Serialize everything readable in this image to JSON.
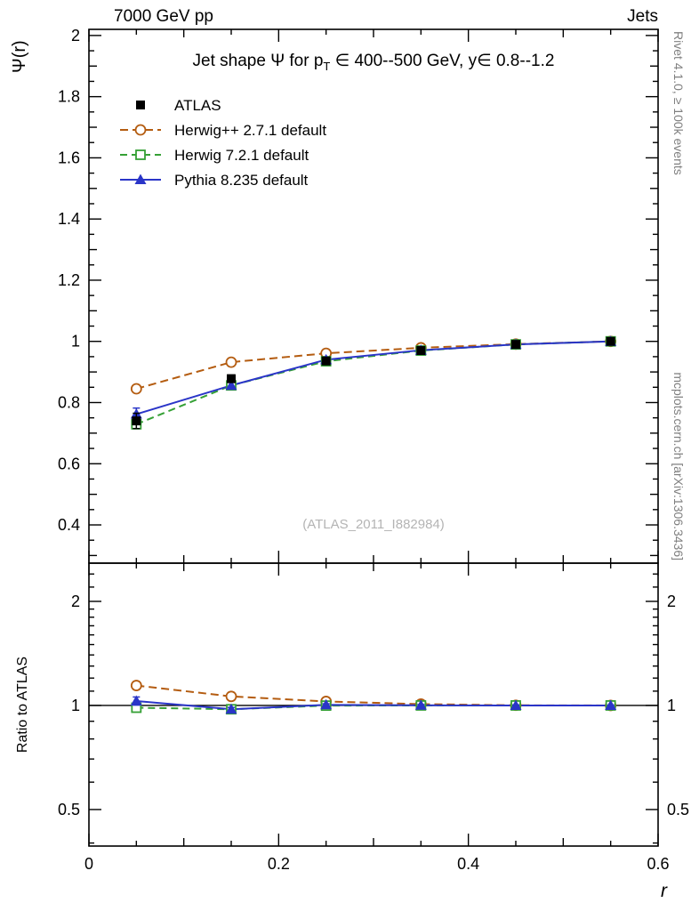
{
  "header": {
    "left": "7000 GeV pp",
    "right": "Jets"
  },
  "side_notes": {
    "top_right": "Rivet 4.1.0, ≥ 100k events",
    "bottom_right": "mcplots.cern.ch [arXiv:1306.3436]"
  },
  "watermark": "(ATLAS_2011_I882984)",
  "chart_data": {
    "type": "line",
    "panels": [
      "main",
      "ratio"
    ],
    "title_parts": {
      "pre": "Jet shape Ψ for p",
      "sub": "T",
      "post": " ∈ 400--500 GeV, y∈ 0.8--1.2"
    },
    "axes": {
      "x": {
        "label": "r",
        "lim": [
          0,
          0.6
        ],
        "majors": [
          0,
          0.2,
          0.4,
          0.6
        ],
        "labels": [
          "0",
          "0.2",
          "0.4",
          "0.6"
        ],
        "minor_step": 0.05
      },
      "main_y": {
        "label": "Ψ(r)",
        "lim": [
          0.275,
          2.02
        ],
        "majors": [
          0.4,
          0.6,
          0.8,
          1,
          1.2,
          1.4,
          1.6,
          1.8,
          2
        ],
        "labels": [
          "0.4",
          "0.6",
          "0.8",
          "1",
          "1.2",
          "1.4",
          "1.6",
          "1.8",
          "2"
        ],
        "minor_step": 0.05
      },
      "ratio_y": {
        "label": "Ratio to ATLAS",
        "scale": "log",
        "lim": [
          0.392,
          2.58
        ],
        "majors": [
          0.5,
          1,
          2
        ],
        "labels": [
          "0.5",
          "1",
          "2"
        ],
        "minors": [
          0.4,
          0.6,
          0.7,
          0.8,
          0.9,
          1.1,
          1.2,
          1.3,
          1.4,
          1.5,
          1.6,
          1.7,
          1.8,
          1.9,
          2.2,
          2.4
        ],
        "reference": 1
      }
    },
    "x": [
      0.05,
      0.15,
      0.25,
      0.35,
      0.45,
      0.55
    ],
    "series": [
      {
        "id": "atlas",
        "name": "ATLAS",
        "color": "#000000",
        "marker": "filled-square",
        "line": "none",
        "values": [
          0.74,
          0.878,
          0.936,
          0.97,
          0.99,
          1.0
        ],
        "errors": [
          0.025,
          0.012,
          0.008,
          0.005,
          0.004,
          0.002
        ],
        "ratio_is_reference": true
      },
      {
        "id": "herwigpp",
        "name": "Herwig++ 2.7.1 default",
        "color": "#b45c10",
        "marker": "open-circle",
        "line": "dashed",
        "dash": "9 5",
        "values": [
          0.845,
          0.932,
          0.961,
          0.979,
          0.991,
          1.0
        ],
        "errors": [
          0.008,
          0.005,
          0.004,
          0.003,
          0.002,
          0.002
        ],
        "ratio": [
          1.142,
          1.062,
          1.027,
          1.009,
          1.001,
          1.0
        ],
        "ratio_errors": [
          0.012,
          0.007,
          0.005,
          0.004,
          0.003,
          0.002
        ]
      },
      {
        "id": "herwig7",
        "name": "Herwig 7.2.1 default",
        "color": "#35a035",
        "marker": "open-square",
        "line": "dashed",
        "dash": "8 5",
        "values": [
          0.729,
          0.856,
          0.935,
          0.97,
          0.99,
          1.0
        ],
        "errors": [
          0.01,
          0.006,
          0.004,
          0.003,
          0.002,
          0.002
        ],
        "ratio": [
          0.985,
          0.975,
          0.999,
          1.0,
          1.0,
          1.0
        ],
        "ratio_errors": [
          0.015,
          0.008,
          0.005,
          0.004,
          0.003,
          0.002
        ]
      },
      {
        "id": "pythia",
        "name": "Pythia 8.235 default",
        "color": "#2a35c8",
        "marker": "filled-triangle",
        "line": "solid",
        "values": [
          0.762,
          0.856,
          0.94,
          0.971,
          0.99,
          1.0
        ],
        "errors": [
          0.02,
          0.01,
          0.006,
          0.004,
          0.003,
          0.002
        ],
        "ratio": [
          1.03,
          0.975,
          1.004,
          1.001,
          1.0,
          1.0
        ],
        "ratio_errors": [
          0.028,
          0.012,
          0.007,
          0.005,
          0.004,
          0.003
        ]
      }
    ]
  }
}
